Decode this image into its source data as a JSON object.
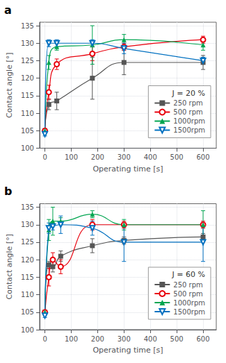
{
  "chart_data": [
    {
      "type": "line",
      "title": "a",
      "legend_title": "J = 20 %",
      "xlabel": "Operating time [s]",
      "ylabel": "Contact angle [°]",
      "x": [
        0,
        15,
        45,
        180,
        300,
        600
      ],
      "series": [
        {
          "name": "250 rpm",
          "color": "#555555",
          "marker": "square",
          "values": [
            105.0,
            112.5,
            113.5,
            120.0,
            124.5,
            124.5
          ],
          "yerr": [
            0.5,
            1.5,
            2.5,
            6.0,
            3.5,
            2.0
          ]
        },
        {
          "name": "500 rpm",
          "color": "#e8000d",
          "marker": "circle-open",
          "values": [
            105.0,
            116.0,
            124.0,
            127.0,
            129.0,
            131.0
          ],
          "yerr": [
            0.5,
            2.0,
            1.5,
            2.0,
            1.0,
            1.0
          ]
        },
        {
          "name": "1000rpm",
          "color": "#00a550",
          "marker": "triangle",
          "values": [
            105.0,
            124.5,
            129.0,
            129.5,
            131.0,
            129.5
          ],
          "yerr": [
            0.5,
            2.0,
            1.0,
            5.5,
            1.5,
            1.5
          ]
        },
        {
          "name": "1500rpm",
          "color": "#0070c0",
          "marker": "triangle-down-open",
          "values": [
            104.0,
            130.0,
            130.0,
            130.0,
            128.5,
            125.0
          ],
          "yerr": [
            0.5,
            1.0,
            1.0,
            1.0,
            1.5,
            1.0
          ]
        }
      ],
      "xlim": [
        -20,
        650
      ],
      "ylim": [
        100,
        136
      ],
      "xticks": [
        0,
        100,
        200,
        300,
        400,
        500,
        600
      ],
      "yticks": [
        100,
        105,
        110,
        115,
        120,
        125,
        130,
        135
      ],
      "grid": true,
      "legend": "lower right"
    },
    {
      "type": "line",
      "title": "b",
      "legend_title": "J = 60 %",
      "xlabel": "Operating time [s]",
      "ylabel": "Contact angle [°]",
      "x": [
        0,
        15,
        30,
        60,
        180,
        300,
        600
      ],
      "series": [
        {
          "name": "250 rpm",
          "color": "#555555",
          "marker": "square",
          "values": [
            105.0,
            118.5,
            118.0,
            121.0,
            124.0,
            125.5,
            126.5
          ],
          "yerr": [
            0.5,
            1.0,
            1.5,
            1.5,
            2.0,
            1.0,
            1.0
          ]
        },
        {
          "name": "500 rpm",
          "color": "#e8000d",
          "marker": "circle-open",
          "values": [
            105.0,
            115.0,
            120.0,
            118.0,
            130.0,
            130.0,
            130.0
          ],
          "yerr": [
            0.5,
            2.5,
            2.0,
            2.0,
            1.5,
            1.0,
            1.0
          ]
        },
        {
          "name": "1000rpm",
          "color": "#00a550",
          "marker": "triangle",
          "values": [
            105.0,
            128.5,
            131.0,
            131.0,
            133.0,
            130.0,
            130.0
          ],
          "yerr": [
            0.5,
            3.0,
            4.0,
            1.0,
            1.0,
            1.5,
            4.0
          ]
        },
        {
          "name": "1500rpm",
          "color": "#0070c0",
          "marker": "triangle-down-open",
          "values": [
            104.0,
            129.0,
            129.5,
            130.0,
            129.0,
            125.0,
            125.0
          ],
          "yerr": [
            0.5,
            1.5,
            1.0,
            2.5,
            2.0,
            5.5,
            5.5
          ]
        }
      ],
      "xlim": [
        -20,
        650
      ],
      "ylim": [
        100,
        136
      ],
      "xticks": [
        0,
        100,
        200,
        300,
        400,
        500,
        600
      ],
      "yticks": [
        100,
        105,
        110,
        115,
        120,
        125,
        130,
        135
      ],
      "grid": true,
      "legend": "lower right"
    }
  ]
}
